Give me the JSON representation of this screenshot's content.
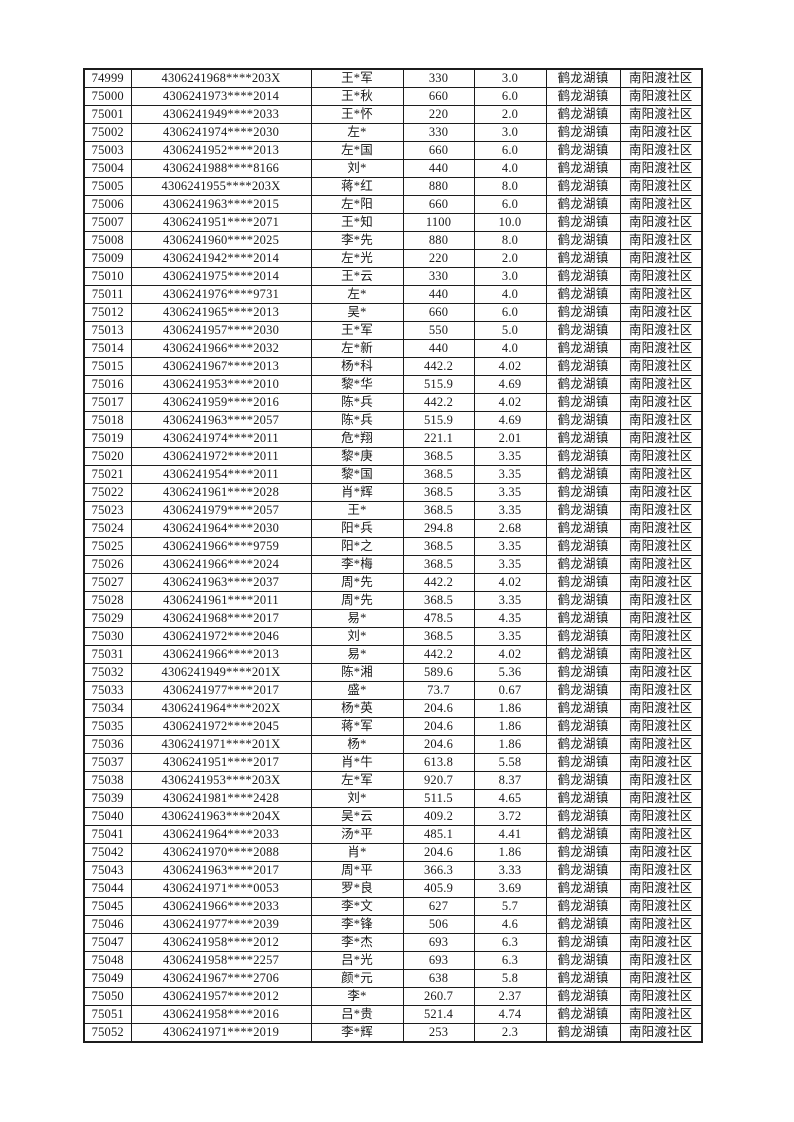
{
  "page": {
    "background_color": "#ffffff",
    "text_color": "#1a1a1a",
    "border_color": "#1c1c1c"
  },
  "table": {
    "column_keys": [
      "sequence_number",
      "id_number_masked",
      "name",
      "amount",
      "quantity",
      "town",
      "community"
    ],
    "town_repeated_value": "鹤龙湖镇",
    "community_repeated_value": "南阳渡社区",
    "rows": [
      [
        "74999",
        "4306241968****203X",
        "王*军",
        "330",
        "3.0",
        "鹤龙湖镇",
        "南阳渡社区"
      ],
      [
        "75000",
        "4306241973****2014",
        "王*秋",
        "660",
        "6.0",
        "鹤龙湖镇",
        "南阳渡社区"
      ],
      [
        "75001",
        "4306241949****2033",
        "王*怀",
        "220",
        "2.0",
        "鹤龙湖镇",
        "南阳渡社区"
      ],
      [
        "75002",
        "4306241974****2030",
        "左*",
        "330",
        "3.0",
        "鹤龙湖镇",
        "南阳渡社区"
      ],
      [
        "75003",
        "4306241952****2013",
        "左*国",
        "660",
        "6.0",
        "鹤龙湖镇",
        "南阳渡社区"
      ],
      [
        "75004",
        "4306241988****8166",
        "刘*",
        "440",
        "4.0",
        "鹤龙湖镇",
        "南阳渡社区"
      ],
      [
        "75005",
        "4306241955****203X",
        "蒋*红",
        "880",
        "8.0",
        "鹤龙湖镇",
        "南阳渡社区"
      ],
      [
        "75006",
        "4306241963****2015",
        "左*阳",
        "660",
        "6.0",
        "鹤龙湖镇",
        "南阳渡社区"
      ],
      [
        "75007",
        "4306241951****2071",
        "王*知",
        "1100",
        "10.0",
        "鹤龙湖镇",
        "南阳渡社区"
      ],
      [
        "75008",
        "4306241960****2025",
        "李*先",
        "880",
        "8.0",
        "鹤龙湖镇",
        "南阳渡社区"
      ],
      [
        "75009",
        "4306241942****2014",
        "左*光",
        "220",
        "2.0",
        "鹤龙湖镇",
        "南阳渡社区"
      ],
      [
        "75010",
        "4306241975****2014",
        "王*云",
        "330",
        "3.0",
        "鹤龙湖镇",
        "南阳渡社区"
      ],
      [
        "75011",
        "4306241976****9731",
        "左*",
        "440",
        "4.0",
        "鹤龙湖镇",
        "南阳渡社区"
      ],
      [
        "75012",
        "4306241965****2013",
        "吴*",
        "660",
        "6.0",
        "鹤龙湖镇",
        "南阳渡社区"
      ],
      [
        "75013",
        "4306241957****2030",
        "王*军",
        "550",
        "5.0",
        "鹤龙湖镇",
        "南阳渡社区"
      ],
      [
        "75014",
        "4306241966****2032",
        "左*新",
        "440",
        "4.0",
        "鹤龙湖镇",
        "南阳渡社区"
      ],
      [
        "75015",
        "4306241967****2013",
        "杨*科",
        "442.2",
        "4.02",
        "鹤龙湖镇",
        "南阳渡社区"
      ],
      [
        "75016",
        "4306241953****2010",
        "黎*华",
        "515.9",
        "4.69",
        "鹤龙湖镇",
        "南阳渡社区"
      ],
      [
        "75017",
        "4306241959****2016",
        "陈*兵",
        "442.2",
        "4.02",
        "鹤龙湖镇",
        "南阳渡社区"
      ],
      [
        "75018",
        "4306241963****2057",
        "陈*兵",
        "515.9",
        "4.69",
        "鹤龙湖镇",
        "南阳渡社区"
      ],
      [
        "75019",
        "4306241974****2011",
        "危*翔",
        "221.1",
        "2.01",
        "鹤龙湖镇",
        "南阳渡社区"
      ],
      [
        "75020",
        "4306241972****2011",
        "黎*庚",
        "368.5",
        "3.35",
        "鹤龙湖镇",
        "南阳渡社区"
      ],
      [
        "75021",
        "4306241954****2011",
        "黎*国",
        "368.5",
        "3.35",
        "鹤龙湖镇",
        "南阳渡社区"
      ],
      [
        "75022",
        "4306241961****2028",
        "肖*辉",
        "368.5",
        "3.35",
        "鹤龙湖镇",
        "南阳渡社区"
      ],
      [
        "75023",
        "4306241979****2057",
        "王*",
        "368.5",
        "3.35",
        "鹤龙湖镇",
        "南阳渡社区"
      ],
      [
        "75024",
        "4306241964****2030",
        "阳*兵",
        "294.8",
        "2.68",
        "鹤龙湖镇",
        "南阳渡社区"
      ],
      [
        "75025",
        "4306241966****9759",
        "阳*之",
        "368.5",
        "3.35",
        "鹤龙湖镇",
        "南阳渡社区"
      ],
      [
        "75026",
        "4306241966****2024",
        "李*梅",
        "368.5",
        "3.35",
        "鹤龙湖镇",
        "南阳渡社区"
      ],
      [
        "75027",
        "4306241963****2037",
        "周*先",
        "442.2",
        "4.02",
        "鹤龙湖镇",
        "南阳渡社区"
      ],
      [
        "75028",
        "4306241961****2011",
        "周*先",
        "368.5",
        "3.35",
        "鹤龙湖镇",
        "南阳渡社区"
      ],
      [
        "75029",
        "4306241968****2017",
        "易*",
        "478.5",
        "4.35",
        "鹤龙湖镇",
        "南阳渡社区"
      ],
      [
        "75030",
        "4306241972****2046",
        "刘*",
        "368.5",
        "3.35",
        "鹤龙湖镇",
        "南阳渡社区"
      ],
      [
        "75031",
        "4306241966****2013",
        "易*",
        "442.2",
        "4.02",
        "鹤龙湖镇",
        "南阳渡社区"
      ],
      [
        "75032",
        "4306241949****201X",
        "陈*湘",
        "589.6",
        "5.36",
        "鹤龙湖镇",
        "南阳渡社区"
      ],
      [
        "75033",
        "4306241977****2017",
        "盛*",
        "73.7",
        "0.67",
        "鹤龙湖镇",
        "南阳渡社区"
      ],
      [
        "75034",
        "4306241964****202X",
        "杨*英",
        "204.6",
        "1.86",
        "鹤龙湖镇",
        "南阳渡社区"
      ],
      [
        "75035",
        "4306241972****2045",
        "蒋*军",
        "204.6",
        "1.86",
        "鹤龙湖镇",
        "南阳渡社区"
      ],
      [
        "75036",
        "4306241971****201X",
        "杨*",
        "204.6",
        "1.86",
        "鹤龙湖镇",
        "南阳渡社区"
      ],
      [
        "75037",
        "4306241951****2017",
        "肖*牛",
        "613.8",
        "5.58",
        "鹤龙湖镇",
        "南阳渡社区"
      ],
      [
        "75038",
        "4306241953****203X",
        "左*军",
        "920.7",
        "8.37",
        "鹤龙湖镇",
        "南阳渡社区"
      ],
      [
        "75039",
        "4306241981****2428",
        "刘*",
        "511.5",
        "4.65",
        "鹤龙湖镇",
        "南阳渡社区"
      ],
      [
        "75040",
        "4306241963****204X",
        "吴*云",
        "409.2",
        "3.72",
        "鹤龙湖镇",
        "南阳渡社区"
      ],
      [
        "75041",
        "4306241964****2033",
        "汤*平",
        "485.1",
        "4.41",
        "鹤龙湖镇",
        "南阳渡社区"
      ],
      [
        "75042",
        "4306241970****2088",
        "肖*",
        "204.6",
        "1.86",
        "鹤龙湖镇",
        "南阳渡社区"
      ],
      [
        "75043",
        "4306241963****2017",
        "周*平",
        "366.3",
        "3.33",
        "鹤龙湖镇",
        "南阳渡社区"
      ],
      [
        "75044",
        "4306241971****0053",
        "罗*良",
        "405.9",
        "3.69",
        "鹤龙湖镇",
        "南阳渡社区"
      ],
      [
        "75045",
        "4306241966****2033",
        "李*文",
        "627",
        "5.7",
        "鹤龙湖镇",
        "南阳渡社区"
      ],
      [
        "75046",
        "4306241977****2039",
        "李*锋",
        "506",
        "4.6",
        "鹤龙湖镇",
        "南阳渡社区"
      ],
      [
        "75047",
        "4306241958****2012",
        "李*杰",
        "693",
        "6.3",
        "鹤龙湖镇",
        "南阳渡社区"
      ],
      [
        "75048",
        "4306241958****2257",
        "吕*光",
        "693",
        "6.3",
        "鹤龙湖镇",
        "南阳渡社区"
      ],
      [
        "75049",
        "4306241967****2706",
        "颜*元",
        "638",
        "5.8",
        "鹤龙湖镇",
        "南阳渡社区"
      ],
      [
        "75050",
        "4306241957****2012",
        "李*",
        "260.7",
        "2.37",
        "鹤龙湖镇",
        "南阳渡社区"
      ],
      [
        "75051",
        "4306241958****2016",
        "吕*贵",
        "521.4",
        "4.74",
        "鹤龙湖镇",
        "南阳渡社区"
      ],
      [
        "75052",
        "4306241971****2019",
        "李*辉",
        "253",
        "2.3",
        "鹤龙湖镇",
        "南阳渡社区"
      ]
    ]
  }
}
